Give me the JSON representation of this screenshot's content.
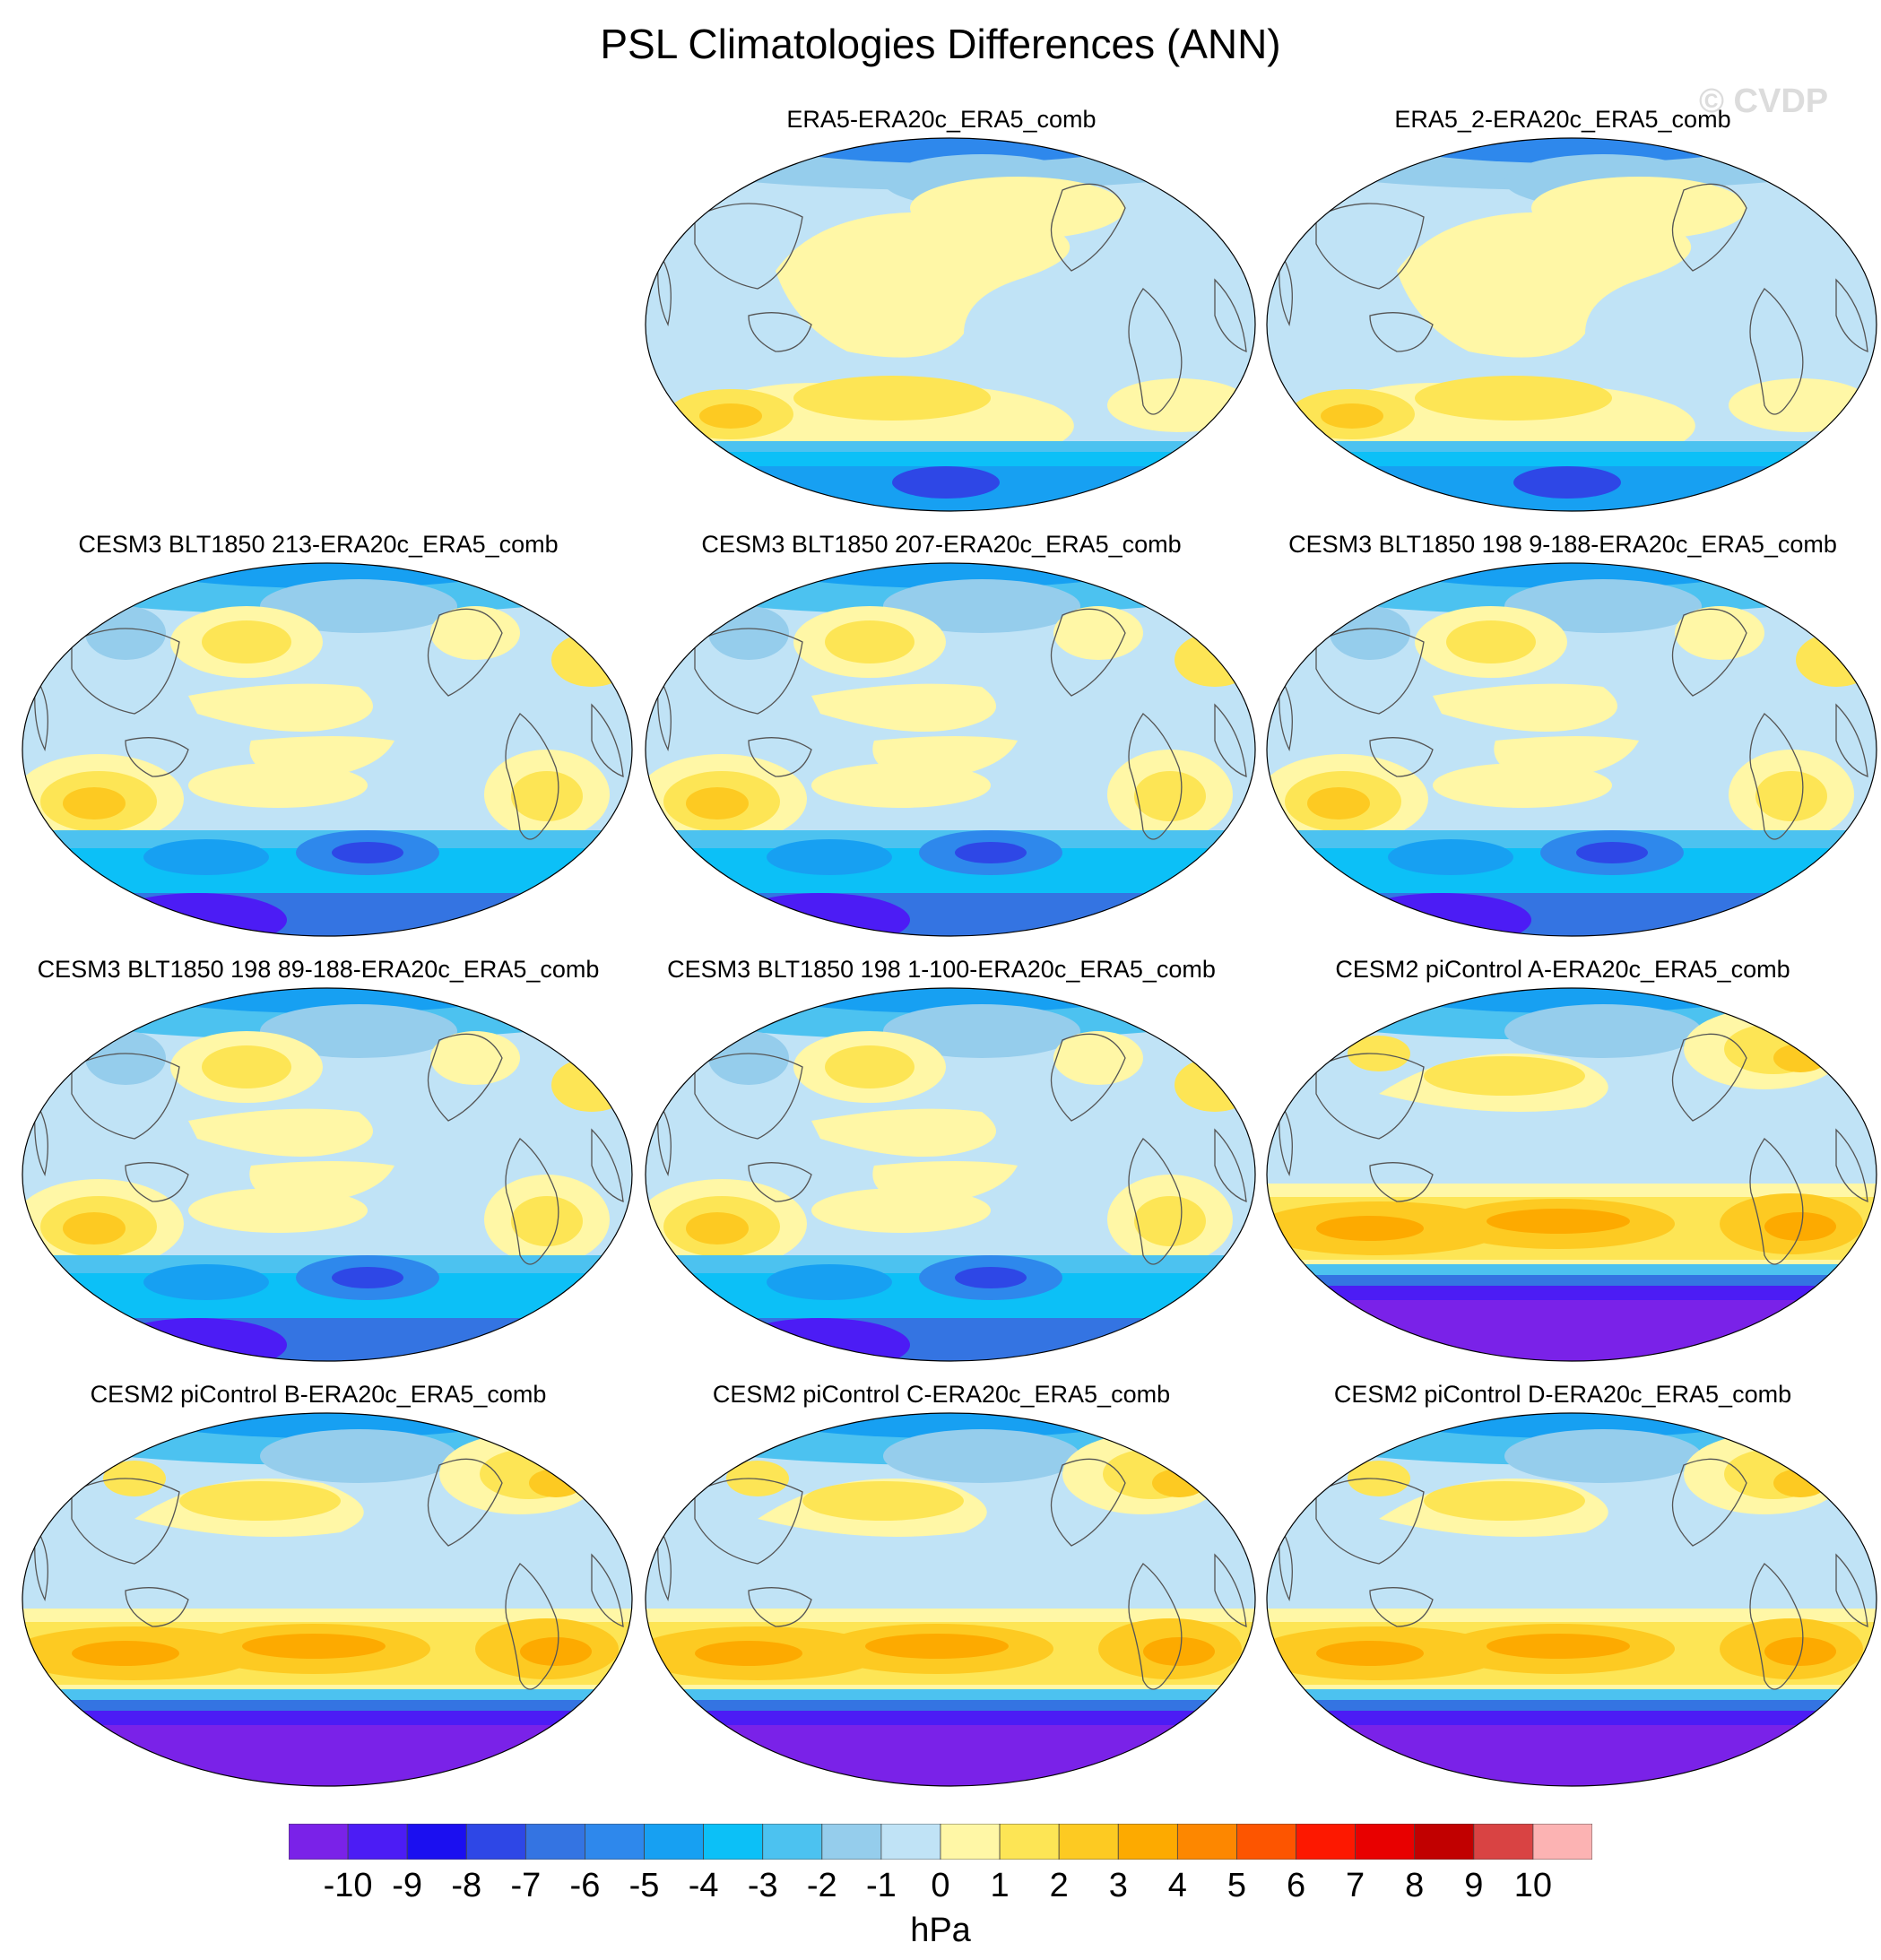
{
  "title": "PSL Climatologies Differences (ANN)",
  "watermark": "© CVDP",
  "units": "hPa",
  "colorbar": {
    "labels": [
      "-10",
      "-9",
      "-8",
      "-7",
      "-6",
      "-5",
      "-4",
      "-3",
      "-2",
      "-1",
      "0",
      "1",
      "2",
      "3",
      "4",
      "5",
      "6",
      "7",
      "8",
      "9",
      "10"
    ],
    "colors": [
      "#7a22e8",
      "#4c1cf5",
      "#1b0ff0",
      "#2e47e6",
      "#3474e2",
      "#2e88ec",
      "#17a0f2",
      "#0cc0f7",
      "#4cc2f0",
      "#95cdec",
      "#c0e3f6",
      "#fff7a6",
      "#fde555",
      "#fdca22",
      "#fdaa00",
      "#fd8700",
      "#fd5500",
      "#fd1800",
      "#e80000",
      "#c10000",
      "#d94343",
      "#fcb3b3"
    ]
  },
  "panels": [
    {
      "id": "p1",
      "title": "ERA5-ERA20c_ERA5_comb",
      "style": "era"
    },
    {
      "id": "p2",
      "title": "ERA5_2-ERA20c_ERA5_comb",
      "style": "era"
    },
    {
      "id": "p3",
      "title": "CESM3 BLT1850 213-ERA20c_ERA5_comb",
      "style": "cesm3"
    },
    {
      "id": "p4",
      "title": "CESM3 BLT1850 207-ERA20c_ERA5_comb",
      "style": "cesm3"
    },
    {
      "id": "p5",
      "title": "CESM3 BLT1850 198 9-188-ERA20c_ERA5_comb",
      "style": "cesm3"
    },
    {
      "id": "p6",
      "title": "CESM3 BLT1850 198 89-188-ERA20c_ERA5_comb",
      "style": "cesm3"
    },
    {
      "id": "p7",
      "title": "CESM3 BLT1850 198 1-100-ERA20c_ERA5_comb",
      "style": "cesm3"
    },
    {
      "id": "p8",
      "title": "CESM2 piControl A-ERA20c_ERA5_comb",
      "style": "cesm2"
    },
    {
      "id": "p9",
      "title": "CESM2 piControl B-ERA20c_ERA5_comb",
      "style": "cesm2"
    },
    {
      "id": "p10",
      "title": "CESM2 piControl C-ERA20c_ERA5_comb",
      "style": "cesm2"
    },
    {
      "id": "p11",
      "title": "CESM2 piControl D-ERA20c_ERA5_comb",
      "style": "cesm2"
    }
  ]
}
